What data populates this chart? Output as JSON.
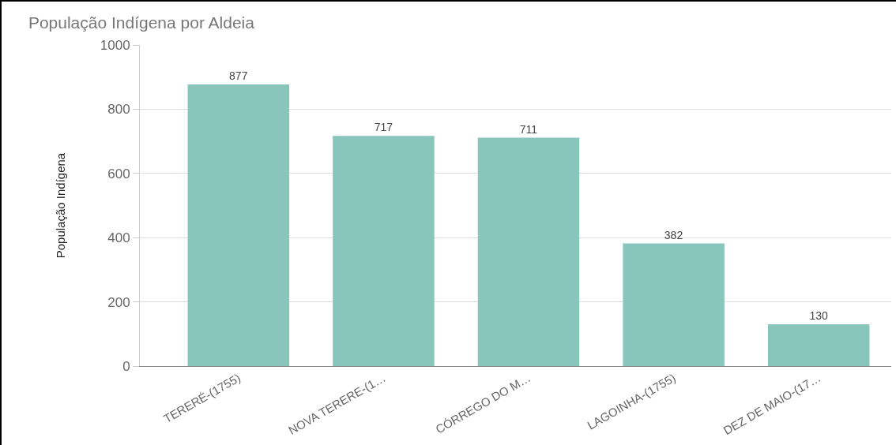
{
  "chart_data": {
    "type": "bar",
    "title": "População Indígena por Aldeia",
    "ylabel": "População Indígena",
    "categories": [
      "TERERÉ-(1755)",
      "NOVA TERERE-(1…",
      "CÓRREGO DO M…",
      "LAGOINHA-(1755)",
      "DEZ DE MAIO-(17…"
    ],
    "values": [
      877,
      717,
      711,
      382,
      130
    ],
    "color": "#88c5bb",
    "ylim": [
      0,
      1000
    ],
    "yticks": [
      0,
      200,
      400,
      600,
      800,
      1000
    ],
    "grid": "y",
    "data_labels": true
  }
}
